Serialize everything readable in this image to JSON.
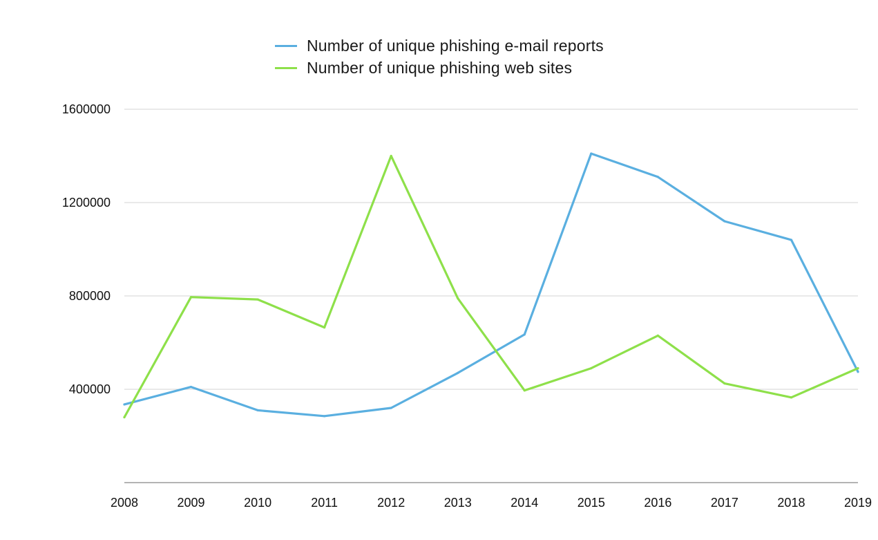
{
  "chart_data": {
    "type": "line",
    "title": "",
    "xlabel": "",
    "ylabel": "",
    "categories": [
      "2008",
      "2009",
      "2010",
      "2011",
      "2012",
      "2013",
      "2014",
      "2015",
      "2016",
      "2017",
      "2018",
      "2019"
    ],
    "yticks": [
      400000,
      800000,
      1200000,
      1600000
    ],
    "ylim": [
      0,
      1600000
    ],
    "grid": true,
    "legend_position": "top-center",
    "series": [
      {
        "name": "Number of unique phishing e-mail reports",
        "color": "#5aafe0",
        "values": [
          335000,
          410000,
          310000,
          285000,
          320000,
          470000,
          635000,
          1410000,
          1310000,
          1120000,
          1040000,
          475000
        ]
      },
      {
        "name": "Number of unique phishing web sites",
        "color": "#8ee04a",
        "values": [
          280000,
          795000,
          785000,
          665000,
          1400000,
          790000,
          395000,
          490000,
          630000,
          425000,
          365000,
          490000
        ]
      }
    ]
  }
}
